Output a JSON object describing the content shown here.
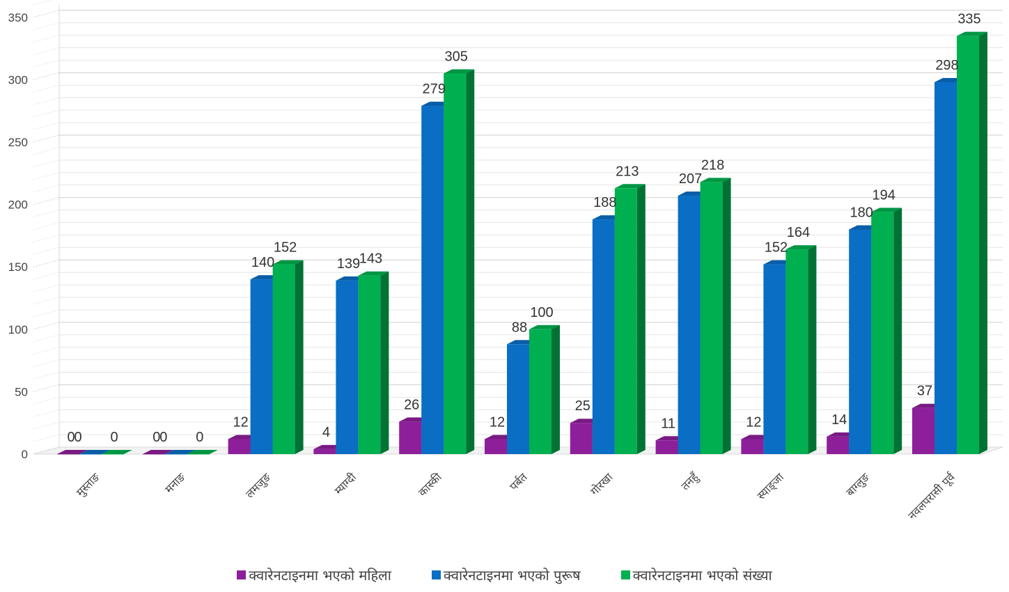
{
  "chart_data": {
    "type": "bar",
    "title": "",
    "xlabel": "",
    "ylabel": "",
    "ylim": [
      0,
      350
    ],
    "yticks": [
      0,
      50,
      100,
      150,
      200,
      250,
      300,
      350
    ],
    "grid": true,
    "legend_position": "bottom",
    "categories": [
      "मुस्ताङ",
      "मनाङ",
      "लमजुङ",
      "म्याग्दी",
      "कास्की",
      "पर्बत",
      "गोरखा",
      "तनहुँ",
      "स्याङ्जा",
      "बाग्लुङ",
      "नवलपरासी पूर्व"
    ],
    "series": [
      {
        "name": "क्वारेनटाइनमा भएको महिला",
        "color": "#8e1f9a",
        "values": [
          0,
          0,
          12,
          4,
          26,
          12,
          25,
          11,
          12,
          14,
          37
        ],
        "labels": [
          "0",
          "0",
          "12",
          "4",
          "26",
          "12",
          "25",
          "11",
          "12",
          "14",
          "37"
        ]
      },
      {
        "name": "क्वारेनटाइनमा भएको पुरूष",
        "color": "#0a6ec4",
        "values": [
          0,
          0,
          140,
          139,
          279,
          88,
          188,
          207,
          152,
          180,
          298
        ],
        "labels": [
          "0",
          "0",
          "140",
          "139",
          "279",
          "88",
          "188",
          "207",
          "152",
          "180",
          "298"
        ]
      },
      {
        "name": "क्वारेनटाइनमा भएको संख्या",
        "color": "#00b050",
        "values": [
          0,
          0,
          152,
          143,
          305,
          100,
          213,
          218,
          164,
          194,
          335
        ],
        "labels": [
          "0",
          "0",
          "152",
          "143",
          "305",
          "100",
          "213",
          "218",
          "164",
          "194",
          "335"
        ]
      }
    ]
  }
}
